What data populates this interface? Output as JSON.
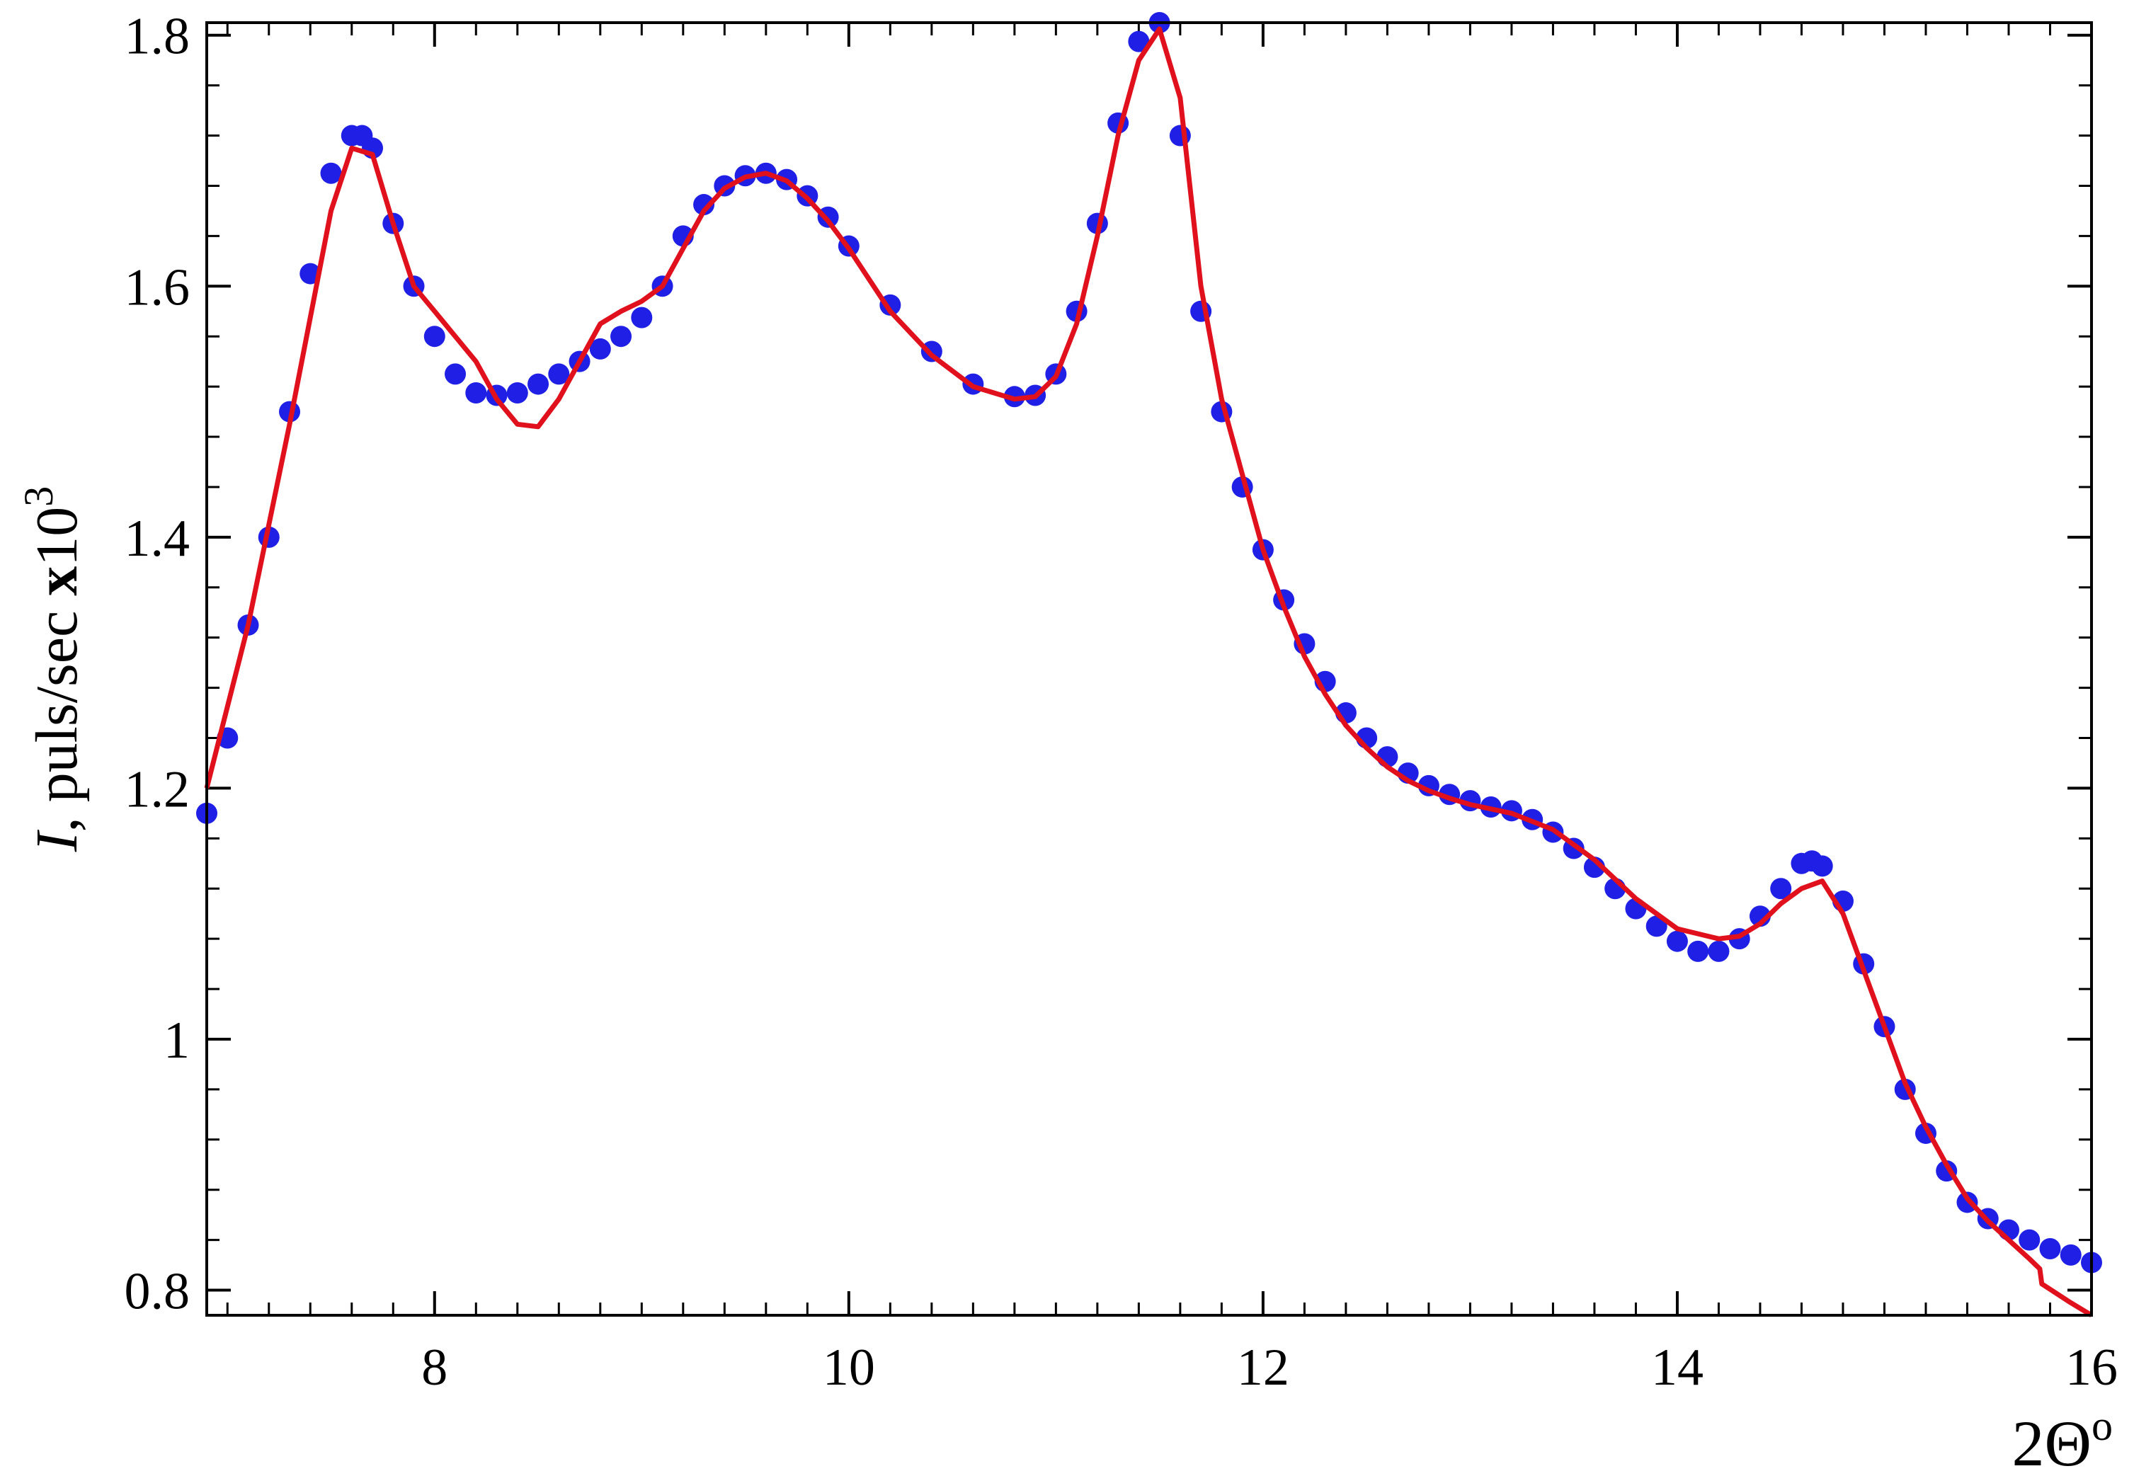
{
  "chart_data": {
    "type": "scatter",
    "title": "",
    "xlabel": "2Θ°",
    "ylabel": "I, puls/sec x10³",
    "xlabel_parts": {
      "main": "2Θ",
      "sup": "o"
    },
    "ylabel_parts": {
      "italic": "I",
      "rest": ", puls/sec ",
      "times": "x",
      "base": "10",
      "sup": "3"
    },
    "xlim": [
      6.9,
      16
    ],
    "ylim": [
      0.78,
      1.81
    ],
    "xticks": [
      8,
      10,
      12,
      14,
      16
    ],
    "xtick_labels": [
      "8",
      "10",
      "12",
      "14",
      "16"
    ],
    "yticks": [
      0.8,
      1.0,
      1.2,
      1.4,
      1.6,
      1.8
    ],
    "ytick_labels": [
      "0.8",
      "1",
      "1.2",
      "1.4",
      "1.6",
      "1.8"
    ],
    "x_minor_step": 0.2,
    "y_minor_step": 0.04,
    "grid": false,
    "legend": "none",
    "series": [
      {
        "kind": "markers",
        "color": "#1f1fe6",
        "x": [
          6.9,
          7.0,
          7.1,
          7.2,
          7.3,
          7.4,
          7.5,
          7.6,
          7.65,
          7.7,
          7.8,
          7.9,
          8.0,
          8.1,
          8.2,
          8.3,
          8.4,
          8.5,
          8.6,
          8.7,
          8.8,
          8.9,
          9.0,
          9.1,
          9.2,
          9.3,
          9.4,
          9.5,
          9.6,
          9.7,
          9.8,
          9.9,
          10.0,
          10.2,
          10.4,
          10.6,
          10.8,
          10.9,
          11.0,
          11.1,
          11.2,
          11.3,
          11.4,
          11.5,
          11.6,
          11.7,
          11.8,
          11.9,
          12.0,
          12.1,
          12.2,
          12.3,
          12.4,
          12.5,
          12.6,
          12.7,
          12.8,
          12.9,
          13.0,
          13.1,
          13.2,
          13.3,
          13.4,
          13.5,
          13.6,
          13.7,
          13.8,
          13.9,
          14.0,
          14.1,
          14.2,
          14.3,
          14.4,
          14.5,
          14.6,
          14.65,
          14.7,
          14.8,
          14.9,
          15.0,
          15.1,
          15.2,
          15.3,
          15.4,
          15.5,
          15.6,
          15.7,
          15.8,
          15.9,
          16.0
        ],
        "y": [
          1.18,
          1.24,
          1.33,
          1.4,
          1.5,
          1.61,
          1.69,
          1.72,
          1.72,
          1.71,
          1.65,
          1.6,
          1.56,
          1.53,
          1.515,
          1.513,
          1.515,
          1.522,
          1.53,
          1.54,
          1.55,
          1.56,
          1.575,
          1.6,
          1.64,
          1.665,
          1.68,
          1.688,
          1.69,
          1.685,
          1.672,
          1.655,
          1.632,
          1.585,
          1.548,
          1.522,
          1.512,
          1.513,
          1.53,
          1.58,
          1.65,
          1.73,
          1.795,
          1.81,
          1.72,
          1.58,
          1.5,
          1.44,
          1.39,
          1.35,
          1.315,
          1.285,
          1.26,
          1.24,
          1.225,
          1.212,
          1.202,
          1.195,
          1.19,
          1.185,
          1.182,
          1.175,
          1.165,
          1.152,
          1.137,
          1.12,
          1.104,
          1.09,
          1.078,
          1.07,
          1.07,
          1.08,
          1.098,
          1.12,
          1.14,
          1.142,
          1.138,
          1.11,
          1.06,
          1.01,
          0.96,
          0.925,
          0.895,
          0.87,
          0.857,
          0.848,
          0.84,
          0.833,
          0.828,
          0.822
        ]
      },
      {
        "kind": "line",
        "color": "#e0101c",
        "x": [
          6.9,
          7.1,
          7.3,
          7.5,
          7.6,
          7.7,
          7.8,
          7.9,
          8.0,
          8.1,
          8.2,
          8.3,
          8.4,
          8.5,
          8.6,
          8.7,
          8.8,
          8.9,
          9.0,
          9.1,
          9.2,
          9.3,
          9.4,
          9.5,
          9.6,
          9.7,
          9.8,
          9.9,
          10.0,
          10.2,
          10.4,
          10.6,
          10.8,
          10.9,
          11.0,
          11.1,
          11.2,
          11.3,
          11.4,
          11.5,
          11.6,
          11.7,
          11.8,
          11.9,
          12.0,
          12.1,
          12.2,
          12.3,
          12.4,
          12.5,
          12.6,
          12.7,
          12.8,
          12.9,
          13.0,
          13.2,
          13.4,
          13.6,
          13.8,
          14.0,
          14.2,
          14.3,
          14.4,
          14.5,
          14.6,
          14.7,
          14.8,
          14.9,
          15.0,
          15.1,
          15.2,
          15.3,
          15.4,
          15.5,
          15.6,
          15.7,
          15.75,
          15.76,
          15.9,
          16.0
        ],
        "y": [
          1.2,
          1.33,
          1.49,
          1.66,
          1.71,
          1.705,
          1.65,
          1.6,
          1.58,
          1.56,
          1.54,
          1.51,
          1.49,
          1.488,
          1.51,
          1.54,
          1.57,
          1.58,
          1.588,
          1.6,
          1.63,
          1.66,
          1.678,
          1.687,
          1.69,
          1.684,
          1.67,
          1.652,
          1.63,
          1.58,
          1.545,
          1.52,
          1.51,
          1.512,
          1.528,
          1.57,
          1.64,
          1.72,
          1.78,
          1.805,
          1.75,
          1.6,
          1.51,
          1.45,
          1.39,
          1.345,
          1.305,
          1.275,
          1.25,
          1.232,
          1.217,
          1.206,
          1.198,
          1.192,
          1.187,
          1.18,
          1.167,
          1.143,
          1.112,
          1.088,
          1.08,
          1.082,
          1.092,
          1.108,
          1.12,
          1.126,
          1.1,
          1.055,
          1.01,
          0.965,
          0.93,
          0.9,
          0.873,
          0.855,
          0.84,
          0.825,
          0.817,
          0.805,
          0.79,
          0.78
        ]
      }
    ]
  }
}
